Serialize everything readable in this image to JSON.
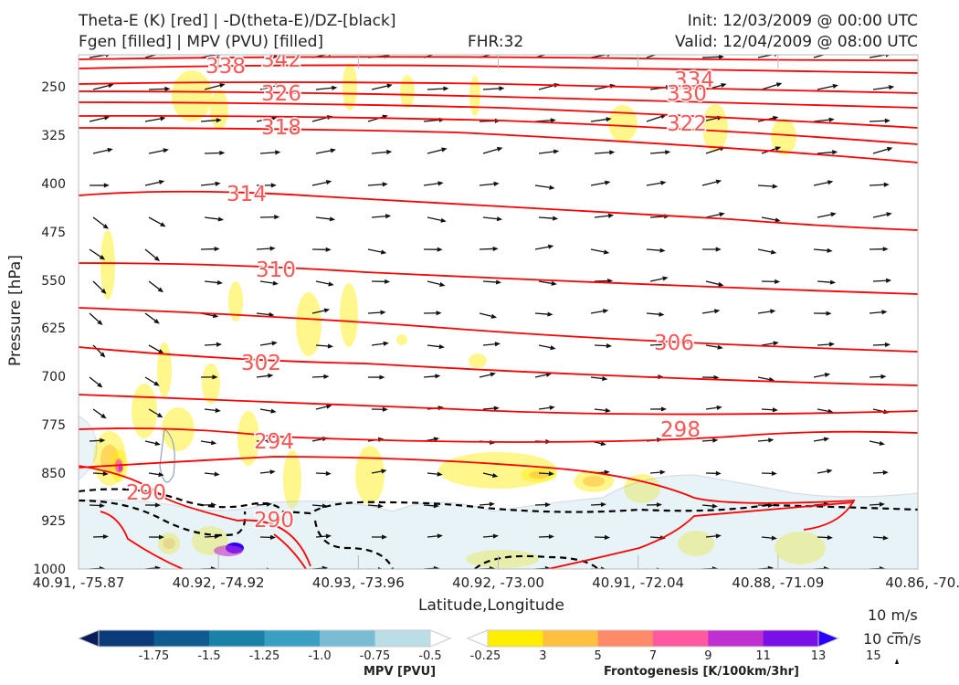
{
  "header": {
    "title_line1": "Theta-E (K) [red] | -D(theta-E)/DZ-[black]",
    "title_line2": "Fgen [filled] | MPV (PVU) [filled]",
    "fhr": "FHR:32",
    "init": "Init: 12/03/2009 @ 00:00 UTC",
    "valid": "Valid: 12/04/2009 @ 08:00 UTC"
  },
  "chart_data": {
    "type": "cross-section",
    "xlabel": "Latitude,Longitude",
    "ylabel": "Pressure [hPa]",
    "x_ticks": [
      "40.91, -75.87",
      "40.92, -74.92",
      "40.93, -73.96",
      "40.92, -73.00",
      "40.91, -72.04",
      "40.88, -71.09",
      "40.86, -70.1"
    ],
    "y_ticks": [
      250,
      325,
      400,
      475,
      550,
      625,
      700,
      775,
      850,
      925,
      1000
    ],
    "ylim": [
      1000,
      190
    ],
    "theta_e_contours": [
      {
        "label": "342",
        "level": 342
      },
      {
        "label": "338",
        "level": 338
      },
      {
        "label": "334",
        "level": 334
      },
      {
        "label": "330",
        "level": 330
      },
      {
        "label": "326",
        "level": 326
      },
      {
        "label": "322",
        "level": 322
      },
      {
        "label": "318",
        "level": 318
      },
      {
        "label": "314",
        "level": 314
      },
      {
        "label": "310",
        "level": 310
      },
      {
        "label": "306",
        "level": 306
      },
      {
        "label": "302",
        "level": 302
      },
      {
        "label": "298",
        "level": 298
      },
      {
        "label": "294",
        "level": 294
      },
      {
        "label": "290",
        "level": 290
      },
      {
        "label": "290",
        "level": 290
      }
    ],
    "colors": {
      "theta_e": "#ff0000",
      "theta_e_label": "#ff5555",
      "stability": "#000000",
      "vectors": "#111111"
    },
    "mpv_colorbar": {
      "label": "MPV [PVU]",
      "ticks": [
        "-1.75",
        "-1.5",
        "-1.25",
        "-1.0",
        "-0.75",
        "-0.5",
        "-0.25"
      ],
      "colors": [
        "#081d58",
        "#0b3b78",
        "#0f5a8e",
        "#1a82a8",
        "#3aa0c2",
        "#79bcd3",
        "#bbdde6",
        "#ffffff"
      ]
    },
    "fgen_colorbar": {
      "label": "Frontogenesis [K/100km/3hr]",
      "ticks": [
        "3",
        "5",
        "7",
        "9",
        "11",
        "13",
        "15"
      ],
      "colors": [
        "#ffffff",
        "#ffee00",
        "#ffc040",
        "#ff8a6a",
        "#ff5aa0",
        "#c030d0",
        "#7a10e8",
        "#2a00ff"
      ]
    },
    "vector_scale": {
      "horizontal": "10 m/s",
      "vertical": "10 cm/s"
    }
  }
}
